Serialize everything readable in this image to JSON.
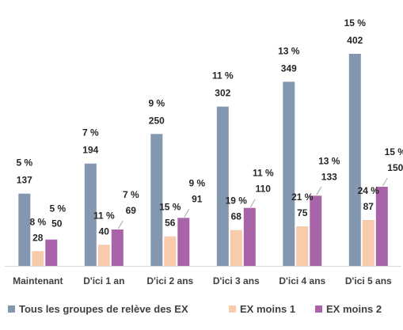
{
  "chart_data": {
    "type": "bar",
    "categories": [
      "Maintenant",
      "D'ici 1 an",
      "D'ici 2 ans",
      "D'ici 3 ans",
      "D'ici 4 ans",
      "D'ici 5 ans"
    ],
    "series": [
      {
        "name": "Tous les groupes de relève des EX",
        "color": "#8497b0",
        "values": [
          137,
          194,
          250,
          302,
          349,
          402
        ],
        "percent_labels": [
          "5 %",
          "7 %",
          "9 %",
          "11 %",
          "13 %",
          "15 %"
        ]
      },
      {
        "name": "EX moins 1",
        "color": "#f8cbad",
        "values": [
          28,
          40,
          56,
          68,
          75,
          87
        ],
        "percent_labels": [
          "8 %",
          "11 %",
          "15 %",
          "19 %",
          "21 %",
          "24 %"
        ]
      },
      {
        "name": "EX moins 2",
        "color": "#a964a9",
        "values": [
          50,
          69,
          91,
          110,
          133,
          150
        ],
        "percent_labels": [
          "5 %",
          "7 %",
          "9 %",
          "11 %",
          "13 %",
          "15 %"
        ]
      }
    ],
    "ylim": [
      0,
      450
    ],
    "grid": false,
    "legend_position": "bottom",
    "axis_line_color": "#d9d9d9"
  }
}
